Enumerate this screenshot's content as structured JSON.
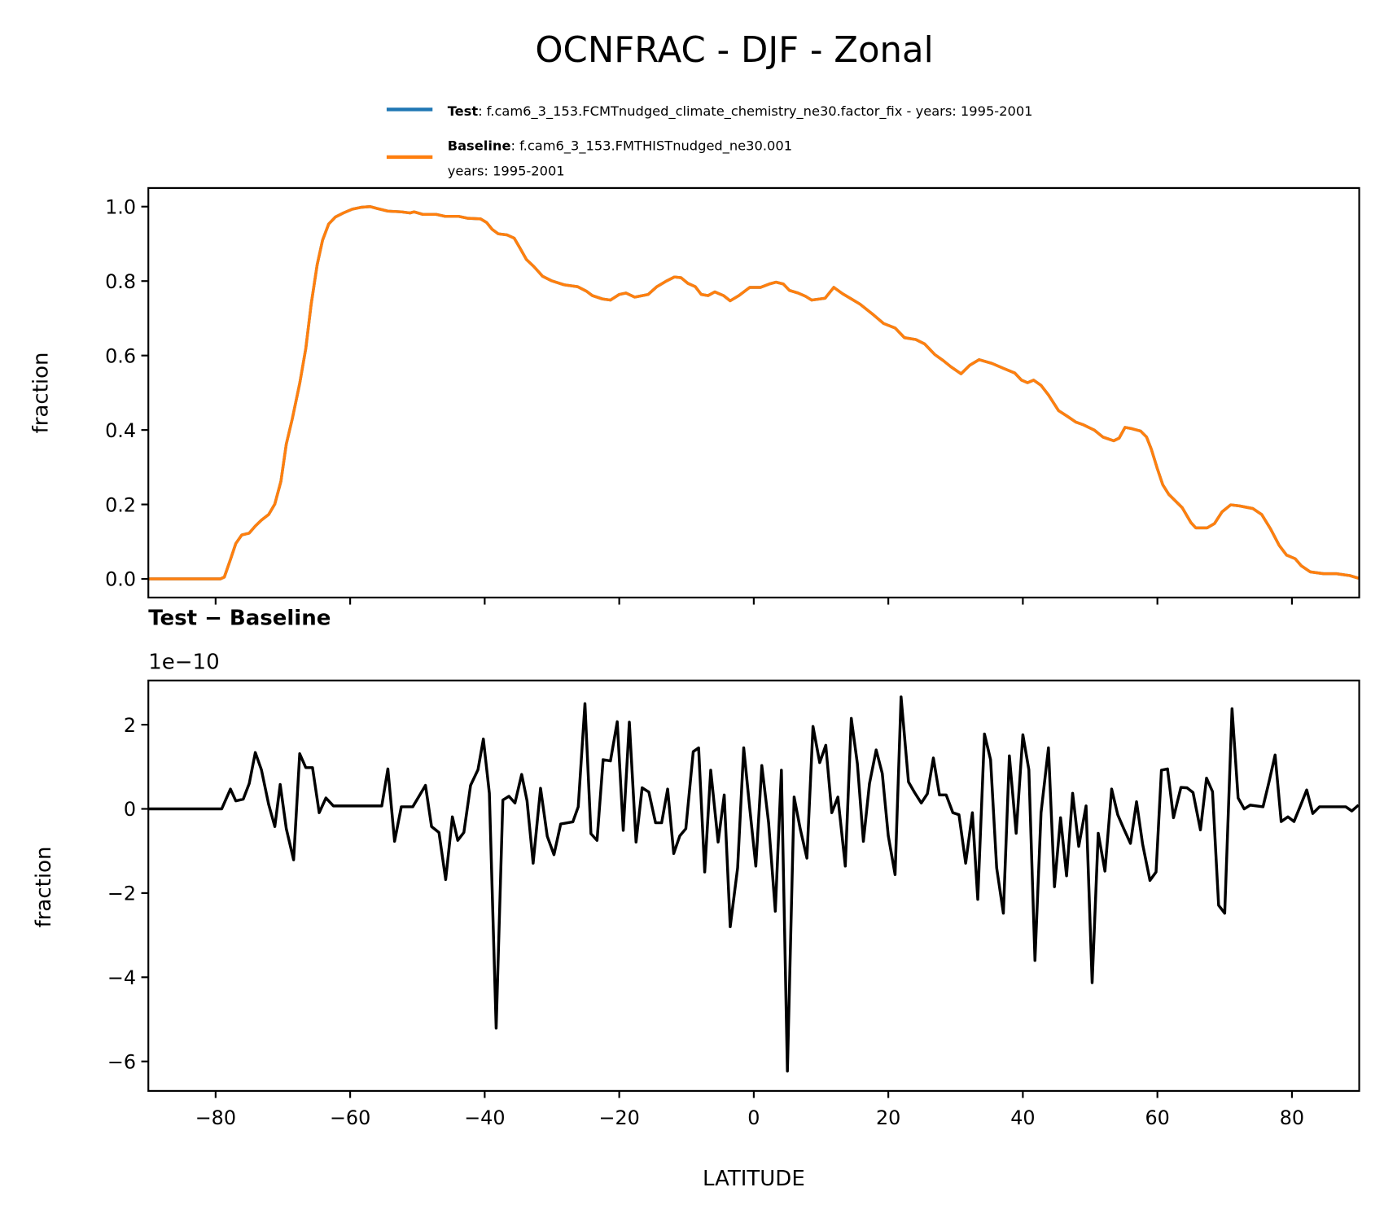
{
  "figure": {
    "title": "OCNFRAC - DJF - Zonal",
    "legend": {
      "test_label": "Test",
      "test_text": ": f.cam6_3_153.FCMTnudged_climate_chemistry_ne30.factor_fix - years: 1995-2001",
      "baseline_label": "Baseline",
      "baseline_text": ": f.cam6_3_153.FMTHISTnudged_ne30.001",
      "baseline_text_line2": "years: 1995-2001",
      "placement": "upper-right, above top panel"
    },
    "colors": {
      "test": "#1f77b4",
      "baseline": "#ff7f0e",
      "difference": "#000000"
    }
  },
  "chart_data": [
    {
      "type": "line",
      "title": "",
      "xlabel": "",
      "ylabel": "fraction",
      "xlim": [
        -90,
        90
      ],
      "ylim": [
        -0.05,
        1.05
      ],
      "grid": false,
      "xticks": [
        -80,
        -60,
        -40,
        -20,
        0,
        20,
        40,
        60,
        80
      ],
      "yticks": [
        0.0,
        0.2,
        0.4,
        0.6,
        0.8,
        1.0
      ],
      "ytick_labels": [
        "0.0",
        "0.2",
        "0.4",
        "0.6",
        "0.8",
        "1.0"
      ],
      "note": "Test and Baseline curves overlap exactly",
      "x": [
        -90,
        -79.3,
        -78.7,
        -77.8,
        -77.0,
        -76.1,
        -75.0,
        -74.1,
        -73.2,
        -72.1,
        -71.2,
        -70.3,
        -69.5,
        -68.6,
        -67.5,
        -66.6,
        -65.8,
        -64.9,
        -64.1,
        -63.2,
        -62.2,
        -61.0,
        -59.7,
        -58.4,
        -57.0,
        -56.0,
        -54.4,
        -52.4,
        -51.1,
        -50.5,
        -49.2,
        -47.2,
        -45.9,
        -43.9,
        -42.6,
        -40.6,
        -39.7,
        -38.9,
        -38.0,
        -36.7,
        -35.6,
        -34.7,
        -33.8,
        -32.7,
        -31.4,
        -30.1,
        -28.2,
        -26.2,
        -24.9,
        -24.0,
        -22.5,
        -21.3,
        -20.0,
        -19.0,
        -17.7,
        -15.7,
        -14.4,
        -13.1,
        -11.8,
        -10.8,
        -9.8,
        -8.7,
        -7.8,
        -6.8,
        -5.8,
        -4.5,
        -3.5,
        -2.2,
        -0.6,
        1.0,
        2.3,
        3.3,
        4.4,
        5.3,
        6.6,
        7.7,
        8.6,
        10.6,
        11.9,
        13.2,
        14.5,
        15.8,
        17.8,
        19.3,
        21.0,
        22.4,
        24.1,
        25.4,
        26.9,
        28.2,
        29.3,
        30.8,
        32.1,
        33.5,
        35.4,
        37.2,
        38.8,
        39.8,
        40.7,
        41.6,
        42.7,
        43.8,
        45.3,
        46.6,
        47.9,
        49.0,
        50.6,
        51.9,
        53.5,
        54.3,
        55.2,
        56.1,
        57.5,
        58.4,
        59.1,
        60.0,
        60.8,
        61.7,
        63.7,
        65.0,
        65.7,
        67.4,
        68.5,
        69.6,
        70.9,
        72.2,
        74.2,
        75.5,
        76.8,
        78.1,
        79.2,
        80.5,
        81.4,
        82.7,
        84.7,
        86.6,
        88.6,
        89.9
      ],
      "series": [
        {
          "name": "Test",
          "values": [
            0,
            0,
            0.005,
            0.052,
            0.095,
            0.118,
            0.123,
            0.142,
            0.158,
            0.173,
            0.201,
            0.262,
            0.362,
            0.43,
            0.525,
            0.619,
            0.738,
            0.844,
            0.91,
            0.953,
            0.972,
            0.983,
            0.993,
            0.998,
            1.0,
            0.995,
            0.988,
            0.986,
            0.983,
            0.986,
            0.979,
            0.979,
            0.974,
            0.974,
            0.969,
            0.967,
            0.957,
            0.939,
            0.927,
            0.924,
            0.915,
            0.887,
            0.858,
            0.839,
            0.813,
            0.801,
            0.79,
            0.785,
            0.773,
            0.761,
            0.752,
            0.749,
            0.764,
            0.768,
            0.757,
            0.764,
            0.785,
            0.799,
            0.811,
            0.809,
            0.794,
            0.785,
            0.764,
            0.761,
            0.771,
            0.761,
            0.747,
            0.761,
            0.783,
            0.783,
            0.792,
            0.797,
            0.792,
            0.775,
            0.768,
            0.759,
            0.749,
            0.754,
            0.783,
            0.766,
            0.752,
            0.738,
            0.709,
            0.686,
            0.674,
            0.648,
            0.643,
            0.631,
            0.603,
            0.586,
            0.57,
            0.551,
            0.574,
            0.589,
            0.579,
            0.565,
            0.553,
            0.534,
            0.527,
            0.534,
            0.52,
            0.494,
            0.452,
            0.437,
            0.421,
            0.414,
            0.4,
            0.381,
            0.371,
            0.378,
            0.407,
            0.404,
            0.397,
            0.381,
            0.348,
            0.296,
            0.253,
            0.227,
            0.191,
            0.151,
            0.137,
            0.137,
            0.149,
            0.18,
            0.199,
            0.196,
            0.189,
            0.173,
            0.135,
            0.09,
            0.064,
            0.054,
            0.035,
            0.019,
            0.014,
            0.014,
            0.009,
            0.002
          ]
        },
        {
          "name": "Baseline",
          "values": [
            0,
            0,
            0.005,
            0.052,
            0.095,
            0.118,
            0.123,
            0.142,
            0.158,
            0.173,
            0.201,
            0.262,
            0.362,
            0.43,
            0.525,
            0.619,
            0.738,
            0.844,
            0.91,
            0.953,
            0.972,
            0.983,
            0.993,
            0.998,
            1.0,
            0.995,
            0.988,
            0.986,
            0.983,
            0.986,
            0.979,
            0.979,
            0.974,
            0.974,
            0.969,
            0.967,
            0.957,
            0.939,
            0.927,
            0.924,
            0.915,
            0.887,
            0.858,
            0.839,
            0.813,
            0.801,
            0.79,
            0.785,
            0.773,
            0.761,
            0.752,
            0.749,
            0.764,
            0.768,
            0.757,
            0.764,
            0.785,
            0.799,
            0.811,
            0.809,
            0.794,
            0.785,
            0.764,
            0.761,
            0.771,
            0.761,
            0.747,
            0.761,
            0.783,
            0.783,
            0.792,
            0.797,
            0.792,
            0.775,
            0.768,
            0.759,
            0.749,
            0.754,
            0.783,
            0.766,
            0.752,
            0.738,
            0.709,
            0.686,
            0.674,
            0.648,
            0.643,
            0.631,
            0.603,
            0.586,
            0.57,
            0.551,
            0.574,
            0.589,
            0.579,
            0.565,
            0.553,
            0.534,
            0.527,
            0.534,
            0.52,
            0.494,
            0.452,
            0.437,
            0.421,
            0.414,
            0.4,
            0.381,
            0.371,
            0.378,
            0.407,
            0.404,
            0.397,
            0.381,
            0.348,
            0.296,
            0.253,
            0.227,
            0.191,
            0.151,
            0.137,
            0.137,
            0.149,
            0.18,
            0.199,
            0.196,
            0.189,
            0.173,
            0.135,
            0.09,
            0.064,
            0.054,
            0.035,
            0.019,
            0.014,
            0.014,
            0.009,
            0.002
          ]
        }
      ]
    },
    {
      "type": "line",
      "title": "Test − Baseline",
      "offset_label": "1e−10",
      "xlabel": "LATITUDE",
      "ylabel": "fraction",
      "xlim": [
        -90,
        90
      ],
      "ylim": [
        -6.7,
        3.05
      ],
      "grid": false,
      "xticks": [
        -80,
        -60,
        -40,
        -20,
        0,
        20,
        40,
        60,
        80
      ],
      "xtick_labels": [
        "−80",
        "−60",
        "−40",
        "−20",
        "0",
        "20",
        "40",
        "60",
        "80"
      ],
      "yticks": [
        -6,
        -4,
        -2,
        0,
        2
      ],
      "ytick_labels": [
        "−6",
        "−4",
        "−2",
        "0",
        "2"
      ],
      "x": [
        -90,
        -79.1,
        -77.8,
        -77.0,
        -75.9,
        -75.0,
        -74.1,
        -73.2,
        -72.1,
        -71.2,
        -70.4,
        -69.5,
        -68.4,
        -67.5,
        -66.6,
        -65.6,
        -64.6,
        -63.6,
        -62.5,
        -55.3,
        -54.4,
        -53.4,
        -52.4,
        -50.7,
        -48.8,
        -47.9,
        -46.8,
        -45.8,
        -44.8,
        -44.0,
        -43.1,
        -42.1,
        -41.0,
        -40.2,
        -39.3,
        -38.3,
        -37.3,
        -36.4,
        -35.5,
        -34.5,
        -33.7,
        -32.8,
        -31.7,
        -30.7,
        -29.7,
        -28.7,
        -26.9,
        -26.1,
        -25.1,
        -24.2,
        -23.3,
        -22.4,
        -21.3,
        -20.3,
        -19.4,
        -18.5,
        -17.5,
        -16.6,
        -15.6,
        -14.6,
        -13.7,
        -12.8,
        -11.9,
        -11.0,
        -10.1,
        -9.0,
        -8.2,
        -7.3,
        -6.4,
        -5.3,
        -4.4,
        -3.5,
        -2.4,
        -1.5,
        -0.6,
        0.3,
        1.2,
        2.2,
        3.2,
        4.1,
        5.0,
        6.0,
        6.9,
        7.9,
        8.8,
        9.8,
        10.7,
        11.6,
        12.5,
        13.6,
        14.5,
        15.4,
        16.3,
        17.2,
        18.2,
        19.1,
        20.0,
        21.0,
        21.9,
        23.0,
        23.9,
        24.9,
        25.8,
        26.7,
        27.6,
        28.6,
        29.6,
        30.5,
        31.5,
        32.5,
        33.3,
        34.3,
        35.2,
        36.1,
        37.1,
        38.0,
        39.0,
        40.0,
        40.9,
        41.8,
        42.7,
        43.8,
        44.7,
        45.6,
        46.5,
        47.4,
        48.3,
        49.4,
        50.3,
        51.2,
        52.2,
        53.2,
        54.1,
        55.0,
        56.0,
        56.9,
        57.8,
        58.9,
        59.8,
        60.6,
        61.5,
        62.4,
        63.5,
        64.4,
        65.3,
        66.4,
        67.3,
        68.2,
        69.1,
        70.0,
        71.1,
        72.0,
        72.9,
        73.8,
        75.7,
        76.6,
        77.5,
        78.4,
        79.4,
        80.3,
        81.3,
        82.2,
        83.1,
        84.1,
        88.0,
        88.9,
        89.9
      ],
      "series": [
        {
          "values": [
            0,
            0,
            0.47,
            0.19,
            0.23,
            0.6,
            1.34,
            0.93,
            0.1,
            -0.42,
            0.58,
            -0.47,
            -1.21,
            1.31,
            0.98,
            0.98,
            -0.09,
            0.26,
            0.07,
            0.07,
            0.95,
            -0.77,
            0.05,
            0.05,
            0.56,
            -0.42,
            -0.56,
            -1.68,
            -0.19,
            -0.75,
            -0.56,
            0.56,
            0.93,
            1.66,
            0.37,
            -5.21,
            0.21,
            0.3,
            0.14,
            0.82,
            0.19,
            -1.29,
            0.49,
            -0.65,
            -1.09,
            -0.36,
            -0.31,
            0.05,
            2.5,
            -0.59,
            -0.75,
            1.17,
            1.14,
            2.07,
            -0.51,
            2.06,
            -0.79,
            0.5,
            0.4,
            -0.33,
            -0.33,
            0.47,
            -1.06,
            -0.64,
            -0.47,
            1.36,
            1.45,
            -1.5,
            0.92,
            -0.79,
            0.33,
            -2.8,
            -1.4,
            1.45,
            0.02,
            -1.36,
            1.03,
            -0.33,
            -2.43,
            0.92,
            -6.23,
            0.28,
            -0.47,
            -1.17,
            1.96,
            1.1,
            1.51,
            -0.09,
            0.28,
            -1.36,
            2.15,
            1.07,
            -0.77,
            0.6,
            1.4,
            0.84,
            -0.64,
            -1.56,
            2.66,
            0.64,
            0.39,
            0.14,
            0.36,
            1.21,
            0.33,
            0.33,
            -0.09,
            -0.14,
            -1.29,
            -0.09,
            -2.15,
            1.78,
            1.17,
            -1.4,
            -2.48,
            1.26,
            -0.58,
            1.76,
            0.93,
            -3.6,
            -0.09,
            1.45,
            -1.85,
            -0.21,
            -1.59,
            0.37,
            -0.89,
            0.07,
            -4.13,
            -0.58,
            -1.48,
            0.47,
            -0.14,
            -0.47,
            -0.82,
            0.17,
            -0.84,
            -1.7,
            -1.5,
            0.92,
            0.95,
            -0.21,
            0.51,
            0.5,
            0.39,
            -0.5,
            0.73,
            0.41,
            -2.29,
            -2.48,
            2.38,
            0.26,
            0.0,
            0.09,
            0.05,
            0.65,
            1.28,
            -0.3,
            -0.19,
            -0.3,
            0.09,
            0.45,
            -0.11,
            0.05,
            0.05,
            -0.05,
            0.09
          ]
        }
      ]
    }
  ]
}
